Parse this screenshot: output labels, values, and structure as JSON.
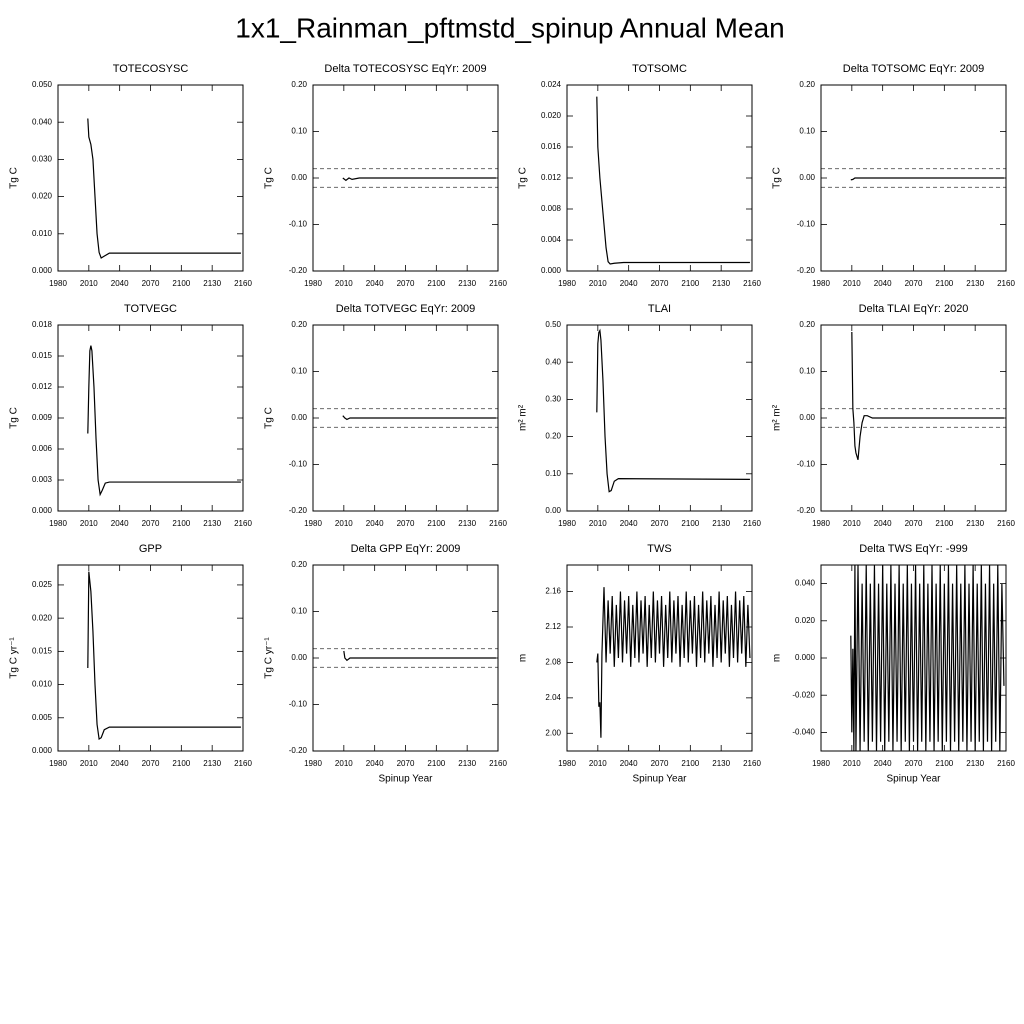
{
  "title": "1x1_Rainman_pftmstd_spinup Annual Mean",
  "chart_data": [
    {
      "type": "line",
      "title": "TOTECOSYSC",
      "ylabel": "Tg C",
      "color": "#000000",
      "x": [
        2009,
        2010,
        2012,
        2014,
        2016,
        2018,
        2020,
        2022,
        2025,
        2030,
        2158
      ],
      "values": [
        0.041,
        0.036,
        0.034,
        0.03,
        0.02,
        0.01,
        0.005,
        0.0035,
        0.004,
        0.0048,
        0.0048
      ],
      "xlim": [
        1980,
        2160
      ],
      "xticks": [
        1980,
        2010,
        2040,
        2070,
        2100,
        2130,
        2160
      ],
      "ylim": [
        0,
        0.05
      ],
      "yticks": [
        {
          "value": 0,
          "label": "0.000"
        },
        {
          "value": 0.01,
          "label": "0.010"
        },
        {
          "value": 0.02,
          "label": "0.020"
        },
        {
          "value": 0.03,
          "label": "0.030"
        },
        {
          "value": 0.04,
          "label": "0.040"
        },
        {
          "value": 0.05,
          "label": "0.050"
        }
      ]
    },
    {
      "type": "line",
      "title": "Delta TOTECOSYSC EqYr: 2009",
      "ylabel": "Tg C",
      "color": "#000000",
      "x": [
        2009,
        2012,
        2015,
        2018,
        2025,
        2158
      ],
      "values": [
        0,
        -0.005,
        0,
        -0.003,
        0,
        0
      ],
      "hlines": [
        0.02,
        -0.02
      ],
      "xlim": [
        1980,
        2160
      ],
      "xticks": [
        1980,
        2010,
        2040,
        2070,
        2100,
        2130,
        2160
      ],
      "ylim": [
        -0.2,
        0.2
      ],
      "yticks": [
        {
          "value": -0.2,
          "label": "-0.20"
        },
        {
          "value": -0.1,
          "label": "-0.10"
        },
        {
          "value": 0,
          "label": "0.00"
        },
        {
          "value": 0.1,
          "label": "0.10"
        },
        {
          "value": 0.2,
          "label": "0.20"
        }
      ]
    },
    {
      "type": "line",
      "title": "TOTSOMC",
      "ylabel": "Tg C",
      "color": "#000000",
      "x": [
        2009,
        2010,
        2012,
        2014,
        2016,
        2018,
        2020,
        2022,
        2026,
        2035,
        2158
      ],
      "values": [
        0.0225,
        0.016,
        0.012,
        0.009,
        0.006,
        0.003,
        0.0012,
        0.0009,
        0.001,
        0.0011,
        0.0011
      ],
      "xlim": [
        1980,
        2160
      ],
      "xticks": [
        1980,
        2010,
        2040,
        2070,
        2100,
        2130,
        2160
      ],
      "ylim": [
        0,
        0.024
      ],
      "yticks": [
        {
          "value": 0,
          "label": "0.000"
        },
        {
          "value": 0.004,
          "label": "0.004"
        },
        {
          "value": 0.008,
          "label": "0.008"
        },
        {
          "value": 0.012,
          "label": "0.012"
        },
        {
          "value": 0.016,
          "label": "0.016"
        },
        {
          "value": 0.02,
          "label": "0.020"
        },
        {
          "value": 0.024,
          "label": "0.024"
        }
      ]
    },
    {
      "type": "line",
      "title": "Delta TOTSOMC EqYr: 2009",
      "ylabel": "Tg C",
      "color": "#000000",
      "x": [
        2009,
        2011,
        2013,
        2158
      ],
      "values": [
        -0.004,
        -0.003,
        0,
        0
      ],
      "hlines": [
        0.02,
        -0.02
      ],
      "xlim": [
        1980,
        2160
      ],
      "xticks": [
        1980,
        2010,
        2040,
        2070,
        2100,
        2130,
        2160
      ],
      "ylim": [
        -0.2,
        0.2
      ],
      "yticks": [
        {
          "value": -0.2,
          "label": "-0.20"
        },
        {
          "value": -0.1,
          "label": "-0.10"
        },
        {
          "value": 0,
          "label": "0.00"
        },
        {
          "value": 0.1,
          "label": "0.10"
        },
        {
          "value": 0.2,
          "label": "0.20"
        }
      ]
    },
    {
      "type": "line",
      "title": "TOTVEGC",
      "ylabel": "Tg C",
      "color": "#000000",
      "x": [
        2009,
        2010,
        2011,
        2012,
        2013,
        2015,
        2017,
        2019,
        2021,
        2023,
        2026,
        2030,
        2158
      ],
      "values": [
        0.0075,
        0.012,
        0.0155,
        0.016,
        0.0155,
        0.012,
        0.007,
        0.003,
        0.0016,
        0.002,
        0.0027,
        0.0028,
        0.0028
      ],
      "xlim": [
        1980,
        2160
      ],
      "xticks": [
        1980,
        2010,
        2040,
        2070,
        2100,
        2130,
        2160
      ],
      "ylim": [
        0,
        0.018
      ],
      "yticks": [
        {
          "value": 0,
          "label": "0.000"
        },
        {
          "value": 0.003,
          "label": "0.003"
        },
        {
          "value": 0.006,
          "label": "0.006"
        },
        {
          "value": 0.009,
          "label": "0.009"
        },
        {
          "value": 0.012,
          "label": "0.012"
        },
        {
          "value": 0.015,
          "label": "0.015"
        },
        {
          "value": 0.018,
          "label": "0.018"
        }
      ]
    },
    {
      "type": "line",
      "title": "Delta TOTVEGC EqYr: 2009",
      "ylabel": "Tg C",
      "color": "#000000",
      "x": [
        2009,
        2011,
        2013,
        2016,
        2158
      ],
      "values": [
        0.005,
        0,
        -0.003,
        0,
        0
      ],
      "hlines": [
        0.02,
        -0.02
      ],
      "xlim": [
        1980,
        2160
      ],
      "xticks": [
        1980,
        2010,
        2040,
        2070,
        2100,
        2130,
        2160
      ],
      "ylim": [
        -0.2,
        0.2
      ],
      "yticks": [
        {
          "value": -0.2,
          "label": "-0.20"
        },
        {
          "value": -0.1,
          "label": "-0.10"
        },
        {
          "value": 0,
          "label": "0.00"
        },
        {
          "value": 0.1,
          "label": "0.10"
        },
        {
          "value": 0.2,
          "label": "0.20"
        }
      ]
    },
    {
      "type": "line",
      "title": "TLAI",
      "ylabel": "m² m²",
      "color": "#000000",
      "x": [
        2009,
        2010,
        2011,
        2012,
        2013,
        2015,
        2017,
        2019,
        2021,
        2023,
        2026,
        2030,
        2158
      ],
      "values": [
        0.265,
        0.45,
        0.48,
        0.485,
        0.46,
        0.35,
        0.2,
        0.1,
        0.052,
        0.055,
        0.08,
        0.087,
        0.085
      ],
      "xlim": [
        1980,
        2160
      ],
      "xticks": [
        1980,
        2010,
        2040,
        2070,
        2100,
        2130,
        2160
      ],
      "ylim": [
        0,
        0.5
      ],
      "yticks": [
        {
          "value": 0,
          "label": "0.00"
        },
        {
          "value": 0.1,
          "label": "0.10"
        },
        {
          "value": 0.2,
          "label": "0.20"
        },
        {
          "value": 0.3,
          "label": "0.30"
        },
        {
          "value": 0.4,
          "label": "0.40"
        },
        {
          "value": 0.5,
          "label": "0.50"
        }
      ]
    },
    {
      "type": "line",
      "title": "Delta TLAI EqYr: 2020",
      "ylabel": "m² m²",
      "color": "#000000",
      "x": [
        2010,
        2011,
        2012,
        2013,
        2014,
        2016,
        2018,
        2020,
        2022,
        2025,
        2030,
        2158
      ],
      "values": [
        0.185,
        0.02,
        -0.01,
        -0.06,
        -0.075,
        -0.09,
        -0.04,
        -0.01,
        0.005,
        0.005,
        0,
        0
      ],
      "hlines": [
        0.02,
        -0.02
      ],
      "xlim": [
        1980,
        2160
      ],
      "xticks": [
        1980,
        2010,
        2040,
        2070,
        2100,
        2130,
        2160
      ],
      "ylim": [
        -0.2,
        0.2
      ],
      "yticks": [
        {
          "value": -0.2,
          "label": "-0.20"
        },
        {
          "value": -0.1,
          "label": "-0.10"
        },
        {
          "value": 0,
          "label": "0.00"
        },
        {
          "value": 0.1,
          "label": "0.10"
        },
        {
          "value": 0.2,
          "label": "0.20"
        }
      ]
    },
    {
      "type": "line",
      "title": "GPP",
      "ylabel": "Tg C yr⁻¹",
      "color": "#000000",
      "x": [
        2009,
        2010,
        2012,
        2014,
        2016,
        2018,
        2020,
        2022,
        2025,
        2030,
        2158
      ],
      "values": [
        0.0125,
        0.027,
        0.024,
        0.018,
        0.01,
        0.004,
        0.0018,
        0.002,
        0.0032,
        0.0036,
        0.0036
      ],
      "xlim": [
        1980,
        2160
      ],
      "xticks": [
        1980,
        2010,
        2040,
        2070,
        2100,
        2130,
        2160
      ],
      "ylim": [
        0,
        0.028
      ],
      "yticks": [
        {
          "value": 0,
          "label": "0.000"
        },
        {
          "value": 0.005,
          "label": "0.005"
        },
        {
          "value": 0.01,
          "label": "0.010"
        },
        {
          "value": 0.015,
          "label": "0.015"
        },
        {
          "value": 0.02,
          "label": "0.020"
        },
        {
          "value": 0.025,
          "label": "0.025"
        }
      ]
    },
    {
      "type": "line",
      "title": "Delta GPP EqYr: 2009",
      "ylabel": "Tg C yr⁻¹",
      "xlabel": "Spinup Year",
      "color": "#000000",
      "x": [
        2010,
        2011,
        2013,
        2016,
        2158
      ],
      "values": [
        0.015,
        0,
        -0.005,
        0,
        0
      ],
      "hlines": [
        0.02,
        -0.02
      ],
      "xlim": [
        1980,
        2160
      ],
      "xticks": [
        1980,
        2010,
        2040,
        2070,
        2100,
        2130,
        2160
      ],
      "ylim": [
        -0.2,
        0.2
      ],
      "yticks": [
        {
          "value": -0.2,
          "label": "-0.20"
        },
        {
          "value": -0.1,
          "label": "-0.10"
        },
        {
          "value": 0,
          "label": "0.00"
        },
        {
          "value": 0.1,
          "label": "0.10"
        },
        {
          "value": 0.2,
          "label": "0.20"
        }
      ]
    },
    {
      "type": "line",
      "title": "TWS",
      "ylabel": "m",
      "xlabel": "Spinup Year",
      "color": "#000000",
      "x": [
        2009,
        2010,
        2011,
        2012,
        2013,
        2014,
        2016,
        2018,
        2020,
        2022,
        2024,
        2026,
        2028,
        2030,
        2032,
        2034,
        2036,
        2038,
        2040,
        2042,
        2044,
        2046,
        2048,
        2050,
        2052,
        2054,
        2056,
        2058,
        2060,
        2062,
        2064,
        2066,
        2068,
        2070,
        2072,
        2074,
        2076,
        2078,
        2080,
        2082,
        2084,
        2086,
        2088,
        2090,
        2092,
        2094,
        2096,
        2098,
        2100,
        2102,
        2104,
        2106,
        2108,
        2110,
        2112,
        2114,
        2116,
        2118,
        2120,
        2122,
        2124,
        2126,
        2128,
        2130,
        2132,
        2134,
        2136,
        2138,
        2140,
        2142,
        2144,
        2146,
        2148,
        2150,
        2152,
        2154,
        2156,
        2158
      ],
      "values": [
        2.08,
        2.09,
        2.03,
        2.035,
        1.995,
        2.09,
        2.165,
        2.08,
        2.15,
        2.09,
        2.155,
        2.075,
        2.145,
        2.085,
        2.16,
        2.08,
        2.15,
        2.09,
        2.155,
        2.075,
        2.145,
        2.085,
        2.16,
        2.08,
        2.15,
        2.09,
        2.155,
        2.075,
        2.145,
        2.085,
        2.16,
        2.08,
        2.15,
        2.09,
        2.155,
        2.075,
        2.145,
        2.085,
        2.16,
        2.08,
        2.15,
        2.09,
        2.155,
        2.075,
        2.145,
        2.085,
        2.16,
        2.08,
        2.15,
        2.09,
        2.155,
        2.075,
        2.145,
        2.085,
        2.16,
        2.08,
        2.15,
        2.09,
        2.155,
        2.075,
        2.145,
        2.085,
        2.16,
        2.08,
        2.15,
        2.09,
        2.155,
        2.075,
        2.145,
        2.085,
        2.16,
        2.08,
        2.15,
        2.09,
        2.155,
        2.075,
        2.145,
        2.085
      ],
      "xlim": [
        1980,
        2160
      ],
      "xticks": [
        1980,
        2010,
        2040,
        2070,
        2100,
        2130,
        2160
      ],
      "ylim": [
        1.98,
        2.19
      ],
      "yticks": [
        {
          "value": 2,
          "label": "2.00"
        },
        2.04,
        2.08,
        2.12,
        2.16
      ]
    },
    {
      "type": "line",
      "title": "Delta TWS EqYr: -999",
      "ylabel": "m",
      "xlabel": "Spinup Year",
      "color": "#000000",
      "x": [
        2009,
        2010,
        2011,
        2012,
        2013,
        2014,
        2016,
        2018,
        2020,
        2022,
        2024,
        2026,
        2028,
        2030,
        2032,
        2034,
        2036,
        2038,
        2040,
        2042,
        2044,
        2046,
        2048,
        2050,
        2052,
        2054,
        2056,
        2058,
        2060,
        2062,
        2064,
        2066,
        2068,
        2070,
        2072,
        2074,
        2076,
        2078,
        2080,
        2082,
        2084,
        2086,
        2088,
        2090,
        2092,
        2094,
        2096,
        2098,
        2100,
        2102,
        2104,
        2106,
        2108,
        2110,
        2112,
        2114,
        2116,
        2118,
        2120,
        2122,
        2124,
        2126,
        2128,
        2130,
        2132,
        2134,
        2136,
        2138,
        2140,
        2142,
        2144,
        2146,
        2148,
        2150,
        2152,
        2154,
        2156,
        2158
      ],
      "values": [
        0.012,
        -0.04,
        0.005,
        -0.05,
        0.05,
        -0.05,
        0.05,
        -0.05,
        0.04,
        -0.045,
        0.05,
        -0.05,
        0.04,
        -0.045,
        0.05,
        -0.05,
        0.04,
        -0.045,
        0.05,
        -0.05,
        0.04,
        -0.045,
        0.05,
        -0.05,
        0.04,
        -0.045,
        0.05,
        -0.05,
        0.04,
        -0.045,
        0.05,
        -0.05,
        0.04,
        -0.045,
        0.05,
        -0.05,
        0.04,
        -0.045,
        0.05,
        -0.05,
        0.04,
        -0.045,
        0.05,
        -0.05,
        0.04,
        -0.045,
        0.05,
        -0.05,
        0.04,
        -0.045,
        0.05,
        -0.05,
        0.04,
        -0.045,
        0.05,
        -0.05,
        0.04,
        -0.045,
        0.05,
        -0.05,
        0.04,
        -0.045,
        0.05,
        -0.05,
        0.04,
        -0.045,
        0.05,
        -0.05,
        0.04,
        -0.045,
        0.05,
        -0.05,
        0.04,
        -0.045,
        0.05,
        -0.05,
        0.04,
        -0.015
      ],
      "xlim": [
        1980,
        2160
      ],
      "xticks": [
        1980,
        2010,
        2040,
        2070,
        2100,
        2130,
        2160
      ],
      "ylim": [
        -0.05,
        0.05
      ],
      "yticks": [
        {
          "value": -0.04,
          "label": "-0.040"
        },
        {
          "value": -0.02,
          "label": "-0.020"
        },
        {
          "value": 0,
          "label": "0.000"
        },
        {
          "value": 0.02,
          "label": "0.020"
        },
        {
          "value": 0.04,
          "label": "0.040"
        }
      ]
    }
  ]
}
